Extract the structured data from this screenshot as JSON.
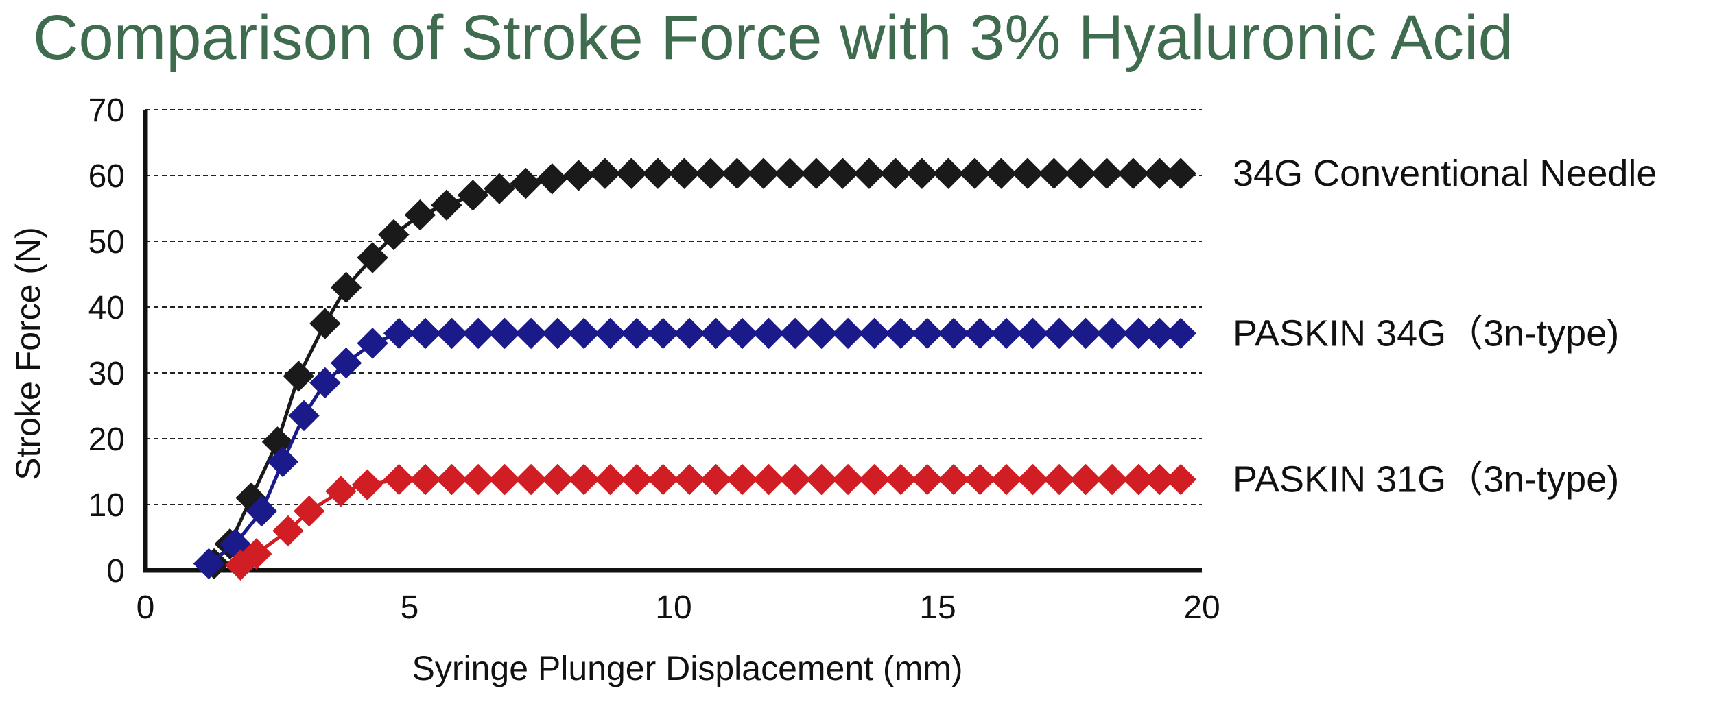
{
  "chart_data": {
    "type": "line",
    "title": "Comparison of Stroke Force with 3% Hyaluronic Acid",
    "xlabel": "Syringe Plunger Displacement (mm)",
    "ylabel": "Stroke Force (N)",
    "xlim": [
      0,
      20
    ],
    "ylim": [
      0,
      70
    ],
    "xticks": [
      "0",
      "5",
      "10",
      "15",
      "20"
    ],
    "yticks": [
      "0",
      "10",
      "20",
      "30",
      "40",
      "50",
      "60",
      "70"
    ],
    "grid": "horizontal dashed",
    "series": [
      {
        "name": "34G Conventional Needle",
        "color": "#1a1a1a",
        "x": [
          1.3,
          1.6,
          2.0,
          2.5,
          2.9,
          3.4,
          3.8,
          4.3,
          4.7,
          5.2,
          5.7,
          6.2,
          6.7,
          7.2,
          7.7,
          8.2,
          8.7,
          9.2,
          9.7,
          10.2,
          10.7,
          11.2,
          11.7,
          12.2,
          12.7,
          13.2,
          13.7,
          14.2,
          14.7,
          15.2,
          15.7,
          16.2,
          16.7,
          17.2,
          17.7,
          18.2,
          18.7,
          19.2,
          19.6
        ],
        "y": [
          1,
          4,
          11,
          19.5,
          29.5,
          37.5,
          43,
          47.5,
          51,
          54,
          55.5,
          57,
          58,
          58.8,
          59.5,
          60,
          60.3,
          60.3,
          60.3,
          60.3,
          60.3,
          60.3,
          60.3,
          60.3,
          60.3,
          60.3,
          60.3,
          60.3,
          60.3,
          60.3,
          60.3,
          60.3,
          60.3,
          60.3,
          60.3,
          60.3,
          60.3,
          60.3,
          60.3
        ]
      },
      {
        "name": "PASKIN 34G（3n-type)",
        "color": "#1a1a8a",
        "x": [
          1.2,
          1.7,
          2.2,
          2.6,
          3.0,
          3.4,
          3.8,
          4.3,
          4.8,
          5.3,
          5.8,
          6.3,
          6.8,
          7.3,
          7.8,
          8.3,
          8.8,
          9.3,
          9.8,
          10.3,
          10.8,
          11.3,
          11.8,
          12.3,
          12.8,
          13.3,
          13.8,
          14.3,
          14.8,
          15.3,
          15.8,
          16.3,
          16.8,
          17.3,
          17.8,
          18.3,
          18.8,
          19.2,
          19.6
        ],
        "y": [
          1,
          4,
          9,
          16.5,
          23.5,
          28.5,
          31.5,
          34.5,
          36,
          36,
          36,
          36,
          36,
          36,
          36,
          36,
          36,
          36,
          36,
          36,
          36,
          36,
          36,
          36,
          36,
          36,
          36,
          36,
          36,
          36,
          36,
          36,
          36,
          36,
          36,
          36,
          36,
          36,
          36
        ]
      },
      {
        "name": "PASKIN 31G（3n-type)",
        "color": "#d01e24",
        "x": [
          1.8,
          2.1,
          2.7,
          3.1,
          3.7,
          4.2,
          4.8,
          5.3,
          5.8,
          6.3,
          6.8,
          7.3,
          7.8,
          8.3,
          8.8,
          9.3,
          9.8,
          10.3,
          10.8,
          11.3,
          11.8,
          12.3,
          12.8,
          13.3,
          13.8,
          14.3,
          14.8,
          15.3,
          15.8,
          16.3,
          16.8,
          17.3,
          17.8,
          18.3,
          18.8,
          19.2,
          19.6
        ],
        "y": [
          0.8,
          2.5,
          6,
          9,
          12,
          13,
          13.8,
          13.8,
          13.8,
          13.8,
          13.8,
          13.8,
          13.8,
          13.8,
          13.8,
          13.8,
          13.8,
          13.8,
          13.8,
          13.8,
          13.8,
          13.8,
          13.8,
          13.8,
          13.8,
          13.8,
          13.8,
          13.8,
          13.8,
          13.8,
          13.8,
          13.8,
          13.8,
          13.8,
          13.8,
          13.8,
          13.8
        ]
      }
    ]
  }
}
